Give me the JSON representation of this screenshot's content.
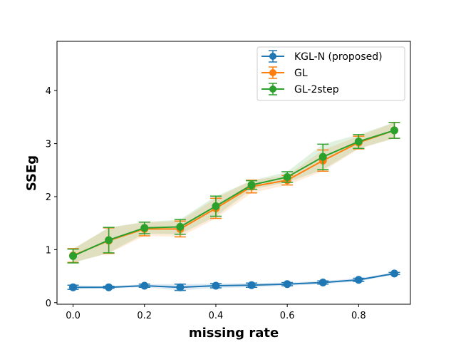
{
  "chart_data": {
    "type": "line",
    "title": "",
    "xlabel": "missing rate",
    "ylabel": "SSEg",
    "x": [
      0.0,
      0.1,
      0.2,
      0.3,
      0.4,
      0.5,
      0.6,
      0.7,
      0.8,
      0.9
    ],
    "xlim": [
      -0.045,
      0.945
    ],
    "ylim": [
      -0.03,
      4.93
    ],
    "xticks": [
      0.0,
      0.2,
      0.4,
      0.6,
      0.8
    ],
    "xtick_labels": [
      "0.0",
      "0.2",
      "0.4",
      "0.6",
      "0.8"
    ],
    "yticks": [
      0,
      1,
      2,
      3,
      4
    ],
    "ytick_labels": [
      "0",
      "1",
      "2",
      "3",
      "4"
    ],
    "grid": false,
    "legend_position": "top-right",
    "series": [
      {
        "name": "KGL-N (proposed)",
        "color": "#1f77b4",
        "values": [
          0.29,
          0.29,
          0.32,
          0.29,
          0.32,
          0.33,
          0.35,
          0.38,
          0.43,
          0.55
        ],
        "err": [
          0.04,
          0.02,
          0.03,
          0.06,
          0.04,
          0.04,
          0.03,
          0.03,
          0.03,
          0.02
        ]
      },
      {
        "name": "GL",
        "color": "#ff7f0e",
        "values": [
          0.89,
          1.17,
          1.39,
          1.39,
          1.78,
          2.19,
          2.31,
          2.68,
          3.02,
          3.25
        ],
        "err": [
          0.13,
          0.24,
          0.13,
          0.15,
          0.19,
          0.12,
          0.09,
          0.2,
          0.12,
          0.15
        ]
      },
      {
        "name": "GL-2step",
        "color": "#2ca02c",
        "values": [
          0.88,
          1.18,
          1.41,
          1.43,
          1.82,
          2.22,
          2.37,
          2.75,
          3.04,
          3.25
        ],
        "err": [
          0.13,
          0.24,
          0.11,
          0.14,
          0.19,
          0.08,
          0.1,
          0.24,
          0.13,
          0.15
        ]
      }
    ]
  }
}
